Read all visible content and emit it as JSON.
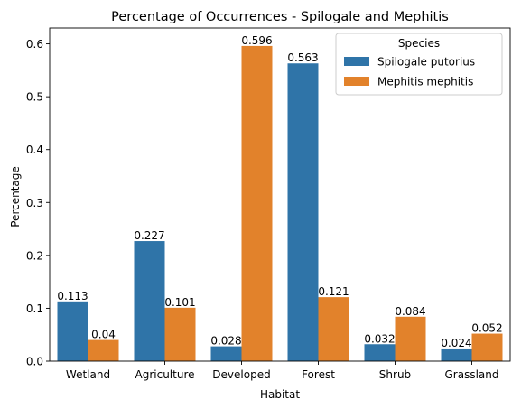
{
  "chart_data": {
    "type": "bar",
    "title": "Percentage of Occurrences - Spilogale and Mephitis",
    "xlabel": "Habitat",
    "ylabel": "Percentage",
    "ylim": [
      0,
      0.63
    ],
    "yticks": [
      "0.0",
      "0.1",
      "0.2",
      "0.3",
      "0.4",
      "0.5",
      "0.6"
    ],
    "categories": [
      "Wetland",
      "Agriculture",
      "Developed",
      "Forest",
      "Shrub",
      "Grassland"
    ],
    "legend": {
      "title": "Species",
      "placement": "top-right"
    },
    "series": [
      {
        "name": "Spilogale putorius",
        "color": "#2f74a8",
        "values": [
          0.113,
          0.227,
          0.028,
          0.563,
          0.032,
          0.024
        ],
        "labels": [
          "0.113",
          "0.227",
          "0.028",
          "0.563",
          "0.032",
          "0.024"
        ]
      },
      {
        "name": "Mephitis mephitis",
        "color": "#e2822b",
        "values": [
          0.04,
          0.101,
          0.596,
          0.121,
          0.084,
          0.052
        ],
        "labels": [
          "0.04",
          "0.101",
          "0.596",
          "0.121",
          "0.084",
          "0.052"
        ]
      }
    ],
    "grid": false
  }
}
